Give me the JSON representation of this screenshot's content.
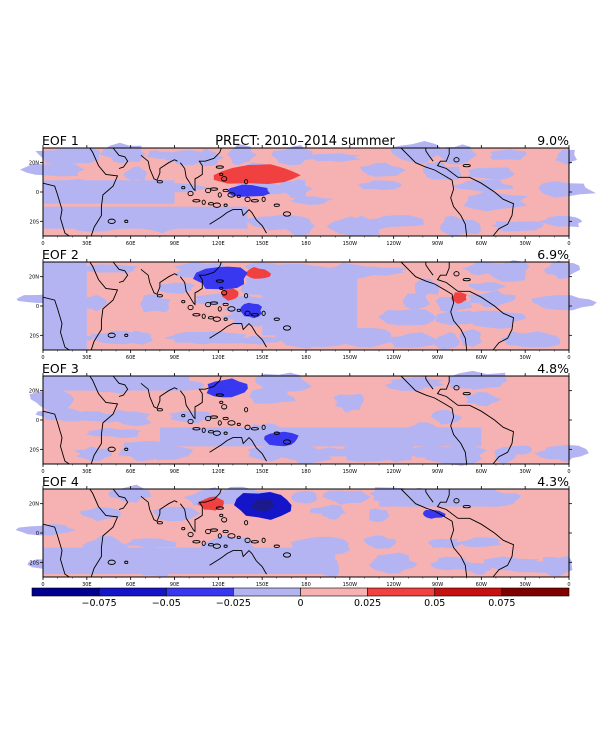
{
  "chart_data": {
    "type": "heatmap",
    "title": "PRECT: 2010–2014 summer",
    "region": "tropics, 30S–30N, 0–360",
    "x_ticks": [
      "0",
      "30E",
      "60E",
      "90E",
      "120E",
      "150E",
      "180",
      "150W",
      "120W",
      "90W",
      "60W",
      "30W",
      "0"
    ],
    "y_ticks": [
      "20N",
      "0",
      "20S"
    ],
    "panels": [
      {
        "label": "EOF 1",
        "variance": "9.0%",
        "features": [
          {
            "sign": "positive",
            "level": 0.025,
            "lon_range": [
              118,
              178
            ],
            "lat_range": [
              5,
              18
            ],
            "description": "band east of Philippines"
          },
          {
            "sign": "negative",
            "level": -0.025,
            "lon_range": [
              125,
              155
            ],
            "lat_range": [
              -3,
              5
            ]
          }
        ]
      },
      {
        "label": "EOF 2",
        "variance": "6.9%",
        "features": [
          {
            "sign": "positive",
            "level": 0.025,
            "lon_range": [
              138,
              155
            ],
            "lat_range": [
              18,
              26
            ]
          },
          {
            "sign": "positive",
            "level": 0.025,
            "lon_range": [
              122,
              134
            ],
            "lat_range": [
              4,
              12
            ]
          },
          {
            "sign": "negative",
            "level": -0.025,
            "lon_range": [
              105,
              140
            ],
            "lat_range": [
              10,
              27
            ]
          },
          {
            "sign": "negative",
            "level": -0.025,
            "lon_range": [
              135,
              150
            ],
            "lat_range": [
              -8,
              2
            ]
          },
          {
            "sign": "positive",
            "level": 0.025,
            "lon_range": [
              280,
              290
            ],
            "lat_range": [
              2,
              10
            ]
          }
        ]
      },
      {
        "label": "EOF 3",
        "variance": "4.8%",
        "features": [
          {
            "sign": "negative",
            "level": -0.025,
            "lon_range": [
              112,
              140
            ],
            "lat_range": [
              15,
              28
            ]
          },
          {
            "sign": "negative",
            "level": -0.025,
            "lon_range": [
              150,
              175
            ],
            "lat_range": [
              -18,
              -8
            ]
          }
        ]
      },
      {
        "label": "EOF 4",
        "variance": "4.3%",
        "features": [
          {
            "sign": "negative",
            "level": -0.05,
            "lon_range": [
              132,
              170
            ],
            "lat_range": [
              10,
              28
            ]
          },
          {
            "sign": "positive",
            "level": 0.025,
            "lon_range": [
              107,
              125
            ],
            "lat_range": [
              15,
              25
            ]
          },
          {
            "sign": "negative",
            "level": -0.025,
            "lon_range": [
              260,
              275
            ],
            "lat_range": [
              10,
              16
            ]
          }
        ]
      }
    ],
    "colorbar": {
      "levels": [
        -0.1,
        -0.075,
        -0.05,
        -0.025,
        0,
        0.025,
        0.05,
        0.075,
        0.1
      ],
      "tick_labels": [
        "−0.075",
        "−0.05",
        "−0.025",
        "0",
        "0.025",
        "0.05",
        "0.075"
      ],
      "colors": [
        "#000090",
        "#1414c8",
        "#3838f0",
        "#b4b4f2",
        "#f6b2b2",
        "#f04040",
        "#c81010",
        "#800000"
      ]
    }
  }
}
